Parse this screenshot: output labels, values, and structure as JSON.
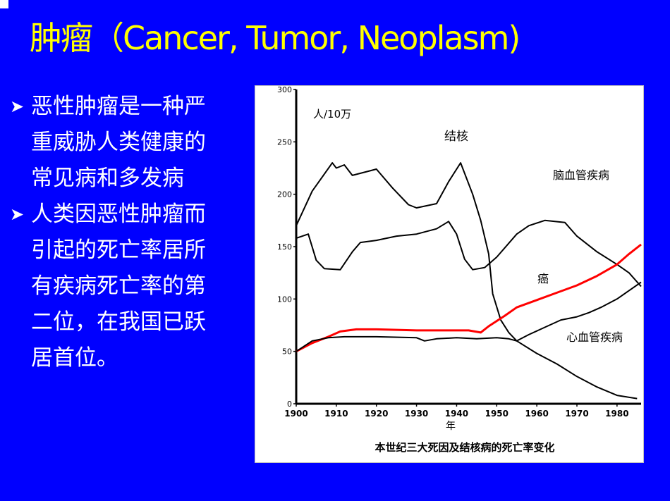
{
  "slide": {
    "title": "肿瘤（Cancer, Tumor, Neoplasm)",
    "bullets": [
      "恶性肿瘤是一种严重威胁人类健康的常见病和多发病",
      "人类因恶性肿瘤而引起的死亡率居所有疾病死亡率的第二位，在我国已跃居首位。"
    ],
    "colors": {
      "background": "#0000ff",
      "title": "#ffff00",
      "text": "#ffffff",
      "highlight_series": "#ff0000"
    }
  },
  "chart_data": {
    "type": "line",
    "caption": "本世纪三大死因及结核病的死亡率变化",
    "xlabel": "年",
    "ylabel": "人/10万",
    "xlim": [
      1900,
      1986
    ],
    "ylim": [
      0,
      300
    ],
    "x_ticks": [
      "1900",
      "1910",
      "1920",
      "1930",
      "1940",
      "1950",
      "1960",
      "1970",
      "1980"
    ],
    "y_ticks": [
      "0",
      "50",
      "100",
      "150",
      "200",
      "250",
      "300"
    ],
    "grid": false,
    "series": [
      {
        "name": "结核",
        "color": "#000000",
        "points": [
          [
            1900,
            170
          ],
          [
            1904,
            203
          ],
          [
            1909,
            230
          ],
          [
            1910,
            225
          ],
          [
            1912,
            228
          ],
          [
            1914,
            218
          ],
          [
            1918,
            222
          ],
          [
            1920,
            224
          ],
          [
            1924,
            206
          ],
          [
            1928,
            190
          ],
          [
            1930,
            187
          ],
          [
            1935,
            191
          ],
          [
            1938,
            212
          ],
          [
            1941,
            230
          ],
          [
            1944,
            200
          ],
          [
            1946,
            175
          ],
          [
            1948,
            143
          ],
          [
            1949,
            105
          ],
          [
            1951,
            80
          ],
          [
            1953,
            68
          ],
          [
            1955,
            60
          ],
          [
            1960,
            48
          ],
          [
            1965,
            38
          ],
          [
            1970,
            26
          ],
          [
            1975,
            16
          ],
          [
            1980,
            8
          ],
          [
            1985,
            5
          ]
        ]
      },
      {
        "name": "脑血管疾病",
        "color": "#000000",
        "points": [
          [
            1900,
            158
          ],
          [
            1903,
            162
          ],
          [
            1905,
            137
          ],
          [
            1907,
            129
          ],
          [
            1911,
            128
          ],
          [
            1914,
            145
          ],
          [
            1916,
            154
          ],
          [
            1920,
            156
          ],
          [
            1925,
            160
          ],
          [
            1930,
            162
          ],
          [
            1935,
            167
          ],
          [
            1938,
            174
          ],
          [
            1940,
            162
          ],
          [
            1942,
            138
          ],
          [
            1944,
            128
          ],
          [
            1947,
            130
          ],
          [
            1950,
            140
          ],
          [
            1955,
            162
          ],
          [
            1958,
            170
          ],
          [
            1962,
            175
          ],
          [
            1967,
            173
          ],
          [
            1970,
            160
          ],
          [
            1975,
            145
          ],
          [
            1980,
            133
          ],
          [
            1983,
            125
          ],
          [
            1986,
            112
          ]
        ]
      },
      {
        "name": "癌",
        "color": "#ff0000",
        "points": [
          [
            1900,
            50
          ],
          [
            1904,
            58
          ],
          [
            1908,
            64
          ],
          [
            1911,
            69
          ],
          [
            1915,
            71
          ],
          [
            1920,
            71
          ],
          [
            1930,
            70
          ],
          [
            1940,
            70
          ],
          [
            1943,
            70
          ],
          [
            1946,
            68
          ],
          [
            1948,
            74
          ],
          [
            1952,
            84
          ],
          [
            1955,
            92
          ],
          [
            1960,
            99
          ],
          [
            1965,
            106
          ],
          [
            1970,
            113
          ],
          [
            1975,
            122
          ],
          [
            1980,
            133
          ],
          [
            1983,
            143
          ],
          [
            1986,
            152
          ]
        ]
      },
      {
        "name": "心血管疾病",
        "color": "#000000",
        "points": [
          [
            1900,
            50
          ],
          [
            1904,
            60
          ],
          [
            1908,
            63
          ],
          [
            1912,
            64
          ],
          [
            1920,
            64
          ],
          [
            1930,
            63
          ],
          [
            1932,
            60
          ],
          [
            1935,
            62
          ],
          [
            1940,
            63
          ],
          [
            1945,
            62
          ],
          [
            1950,
            63
          ],
          [
            1953,
            62
          ],
          [
            1955,
            60
          ],
          [
            1958,
            66
          ],
          [
            1962,
            73
          ],
          [
            1966,
            80
          ],
          [
            1970,
            83
          ],
          [
            1973,
            87
          ],
          [
            1976,
            92
          ],
          [
            1980,
            100
          ],
          [
            1983,
            108
          ],
          [
            1986,
            116
          ]
        ]
      }
    ],
    "annotations": [
      "结核",
      "脑血管疾病",
      "癌",
      "心血管疾病"
    ]
  }
}
